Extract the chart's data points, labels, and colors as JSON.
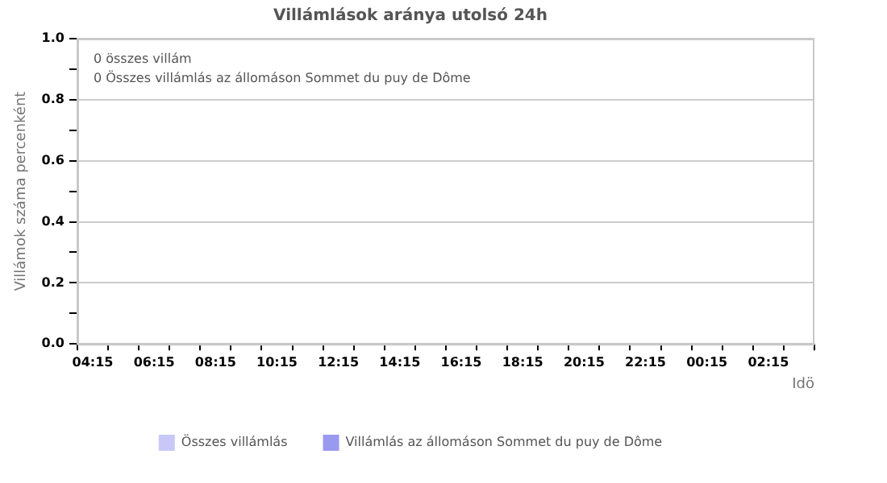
{
  "chart_data": {
    "type": "bar",
    "title": "Villámlások aránya utolsó 24h",
    "xlabel": "Idö",
    "ylabel": "Villámok száma percenként",
    "annotations": [
      "0 összes villám",
      "0 Összes villámlás az állomáson Sommet du puy de Dôme"
    ],
    "categories": [
      "04:15",
      null,
      "06:15",
      null,
      "08:15",
      null,
      "10:15",
      null,
      "12:15",
      null,
      "14:15",
      null,
      "16:15",
      null,
      "18:15",
      null,
      "20:15",
      null,
      "22:15",
      null,
      "00:15",
      null,
      "02:15",
      null
    ],
    "series": [
      {
        "name": "Összes villámlás",
        "color": "#c8c8f8",
        "values": [
          0,
          0,
          0,
          0,
          0,
          0,
          0,
          0,
          0,
          0,
          0,
          0,
          0,
          0,
          0,
          0,
          0,
          0,
          0,
          0,
          0,
          0,
          0,
          0
        ]
      },
      {
        "name": "Villámlás az állomáson Sommet du puy de Dôme",
        "color": "#9999f0",
        "values": [
          0,
          0,
          0,
          0,
          0,
          0,
          0,
          0,
          0,
          0,
          0,
          0,
          0,
          0,
          0,
          0,
          0,
          0,
          0,
          0,
          0,
          0,
          0,
          0
        ]
      }
    ],
    "ylim": [
      0,
      1
    ],
    "yticks": [
      {
        "value": 0,
        "label": "0.0"
      },
      {
        "value": 0.1,
        "label": null
      },
      {
        "value": 0.2,
        "label": "0.2"
      },
      {
        "value": 0.3,
        "label": null
      },
      {
        "value": 0.4,
        "label": "0.4"
      },
      {
        "value": 0.5,
        "label": null
      },
      {
        "value": 0.6,
        "label": "0.6"
      },
      {
        "value": 0.7,
        "label": null
      },
      {
        "value": 0.8,
        "label": "0.8"
      },
      {
        "value": 0.9,
        "label": null
      },
      {
        "value": 1,
        "label": "1.0"
      }
    ],
    "grid": "y",
    "legend": "bottom"
  }
}
